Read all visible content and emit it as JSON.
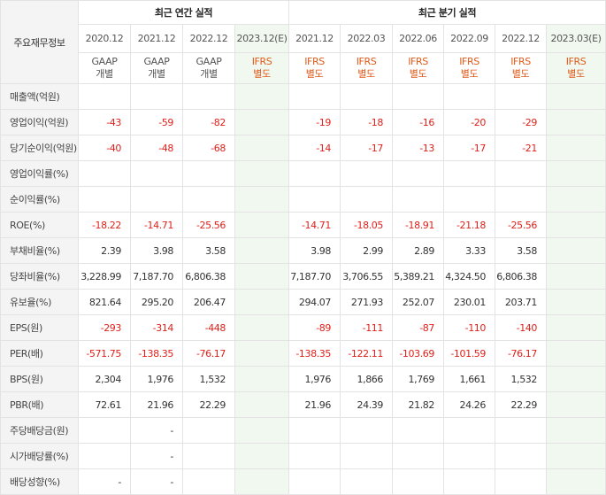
{
  "header": {
    "corner_label": "주요재무정보",
    "annual_group": "최근 연간 실적",
    "quarter_group": "최근 분기 실적",
    "annual_periods": [
      {
        "date": "2020.12",
        "type_line1": "GAAP",
        "type_line2": "개별"
      },
      {
        "date": "2021.12",
        "type_line1": "GAAP",
        "type_line2": "개별"
      },
      {
        "date": "2022.12",
        "type_line1": "GAAP",
        "type_line2": "개별"
      },
      {
        "date": "2023.12(E)",
        "type_line1": "IFRS",
        "type_line2": "별도"
      }
    ],
    "quarter_periods": [
      {
        "date": "2021.12",
        "type_line1": "IFRS",
        "type_line2": "별도"
      },
      {
        "date": "2022.03",
        "type_line1": "IFRS",
        "type_line2": "별도"
      },
      {
        "date": "2022.06",
        "type_line1": "IFRS",
        "type_line2": "별도"
      },
      {
        "date": "2022.09",
        "type_line1": "IFRS",
        "type_line2": "별도"
      },
      {
        "date": "2022.12",
        "type_line1": "IFRS",
        "type_line2": "별도"
      },
      {
        "date": "2023.03(E)",
        "type_line1": "IFRS",
        "type_line2": "별도"
      }
    ]
  },
  "rows": [
    {
      "label": "매출액(억원)",
      "annual": [
        "",
        "",
        "",
        ""
      ],
      "quarter": [
        "",
        "",
        "",
        "",
        "",
        ""
      ]
    },
    {
      "label": "영업이익(억원)",
      "annual": [
        "-43",
        "-59",
        "-82",
        ""
      ],
      "quarter": [
        "-19",
        "-18",
        "-16",
        "-20",
        "-29",
        ""
      ]
    },
    {
      "label": "당기순이익(억원)",
      "annual": [
        "-40",
        "-48",
        "-68",
        ""
      ],
      "quarter": [
        "-14",
        "-17",
        "-13",
        "-17",
        "-21",
        ""
      ]
    },
    {
      "label": "영업이익률(%)",
      "annual": [
        "",
        "",
        "",
        ""
      ],
      "quarter": [
        "",
        "",
        "",
        "",
        "",
        ""
      ]
    },
    {
      "label": "순이익률(%)",
      "annual": [
        "",
        "",
        "",
        ""
      ],
      "quarter": [
        "",
        "",
        "",
        "",
        "",
        ""
      ]
    },
    {
      "label": "ROE(%)",
      "annual": [
        "-18.22",
        "-14.71",
        "-25.56",
        ""
      ],
      "quarter": [
        "-14.71",
        "-18.05",
        "-18.91",
        "-21.18",
        "-25.56",
        ""
      ]
    },
    {
      "label": "부채비율(%)",
      "annual": [
        "2.39",
        "3.98",
        "3.58",
        ""
      ],
      "quarter": [
        "3.98",
        "2.99",
        "2.89",
        "3.33",
        "3.58",
        ""
      ]
    },
    {
      "label": "당좌비율(%)",
      "annual": [
        "3,228.99",
        "7,187.70",
        "6,806.38",
        ""
      ],
      "quarter": [
        "7,187.70",
        "3,706.55",
        "5,389.21",
        "4,324.50",
        "6,806.38",
        ""
      ]
    },
    {
      "label": "유보율(%)",
      "annual": [
        "821.64",
        "295.20",
        "206.47",
        ""
      ],
      "quarter": [
        "294.07",
        "271.93",
        "252.07",
        "230.01",
        "203.71",
        ""
      ]
    },
    {
      "label": "EPS(원)",
      "annual": [
        "-293",
        "-314",
        "-448",
        ""
      ],
      "quarter": [
        "-89",
        "-111",
        "-87",
        "-110",
        "-140",
        ""
      ]
    },
    {
      "label": "PER(배)",
      "annual": [
        "-571.75",
        "-138.35",
        "-76.17",
        ""
      ],
      "quarter": [
        "-138.35",
        "-122.11",
        "-103.69",
        "-101.59",
        "-76.17",
        ""
      ]
    },
    {
      "label": "BPS(원)",
      "annual": [
        "2,304",
        "1,976",
        "1,532",
        ""
      ],
      "quarter": [
        "1,976",
        "1,866",
        "1,769",
        "1,661",
        "1,532",
        ""
      ]
    },
    {
      "label": "PBR(배)",
      "annual": [
        "72.61",
        "21.96",
        "22.29",
        ""
      ],
      "quarter": [
        "21.96",
        "24.39",
        "21.82",
        "24.26",
        "22.29",
        ""
      ]
    },
    {
      "label": "주당배당금(원)",
      "annual": [
        "",
        "-",
        "",
        ""
      ],
      "quarter": [
        "",
        "",
        "",
        "",
        "",
        ""
      ]
    },
    {
      "label": "시가배당률(%)",
      "annual": [
        "",
        "-",
        "",
        ""
      ],
      "quarter": [
        "",
        "",
        "",
        "",
        "",
        ""
      ]
    },
    {
      "label": "배당성향(%)",
      "annual": [
        "-",
        "-",
        "",
        ""
      ],
      "quarter": [
        "",
        "",
        "",
        "",
        "",
        ""
      ]
    }
  ],
  "colors": {
    "negative": "#e0201a",
    "ifrs": "#e05a1a",
    "estimate_bg": "#f1f8ef",
    "label_bg": "#f4f4f4"
  }
}
